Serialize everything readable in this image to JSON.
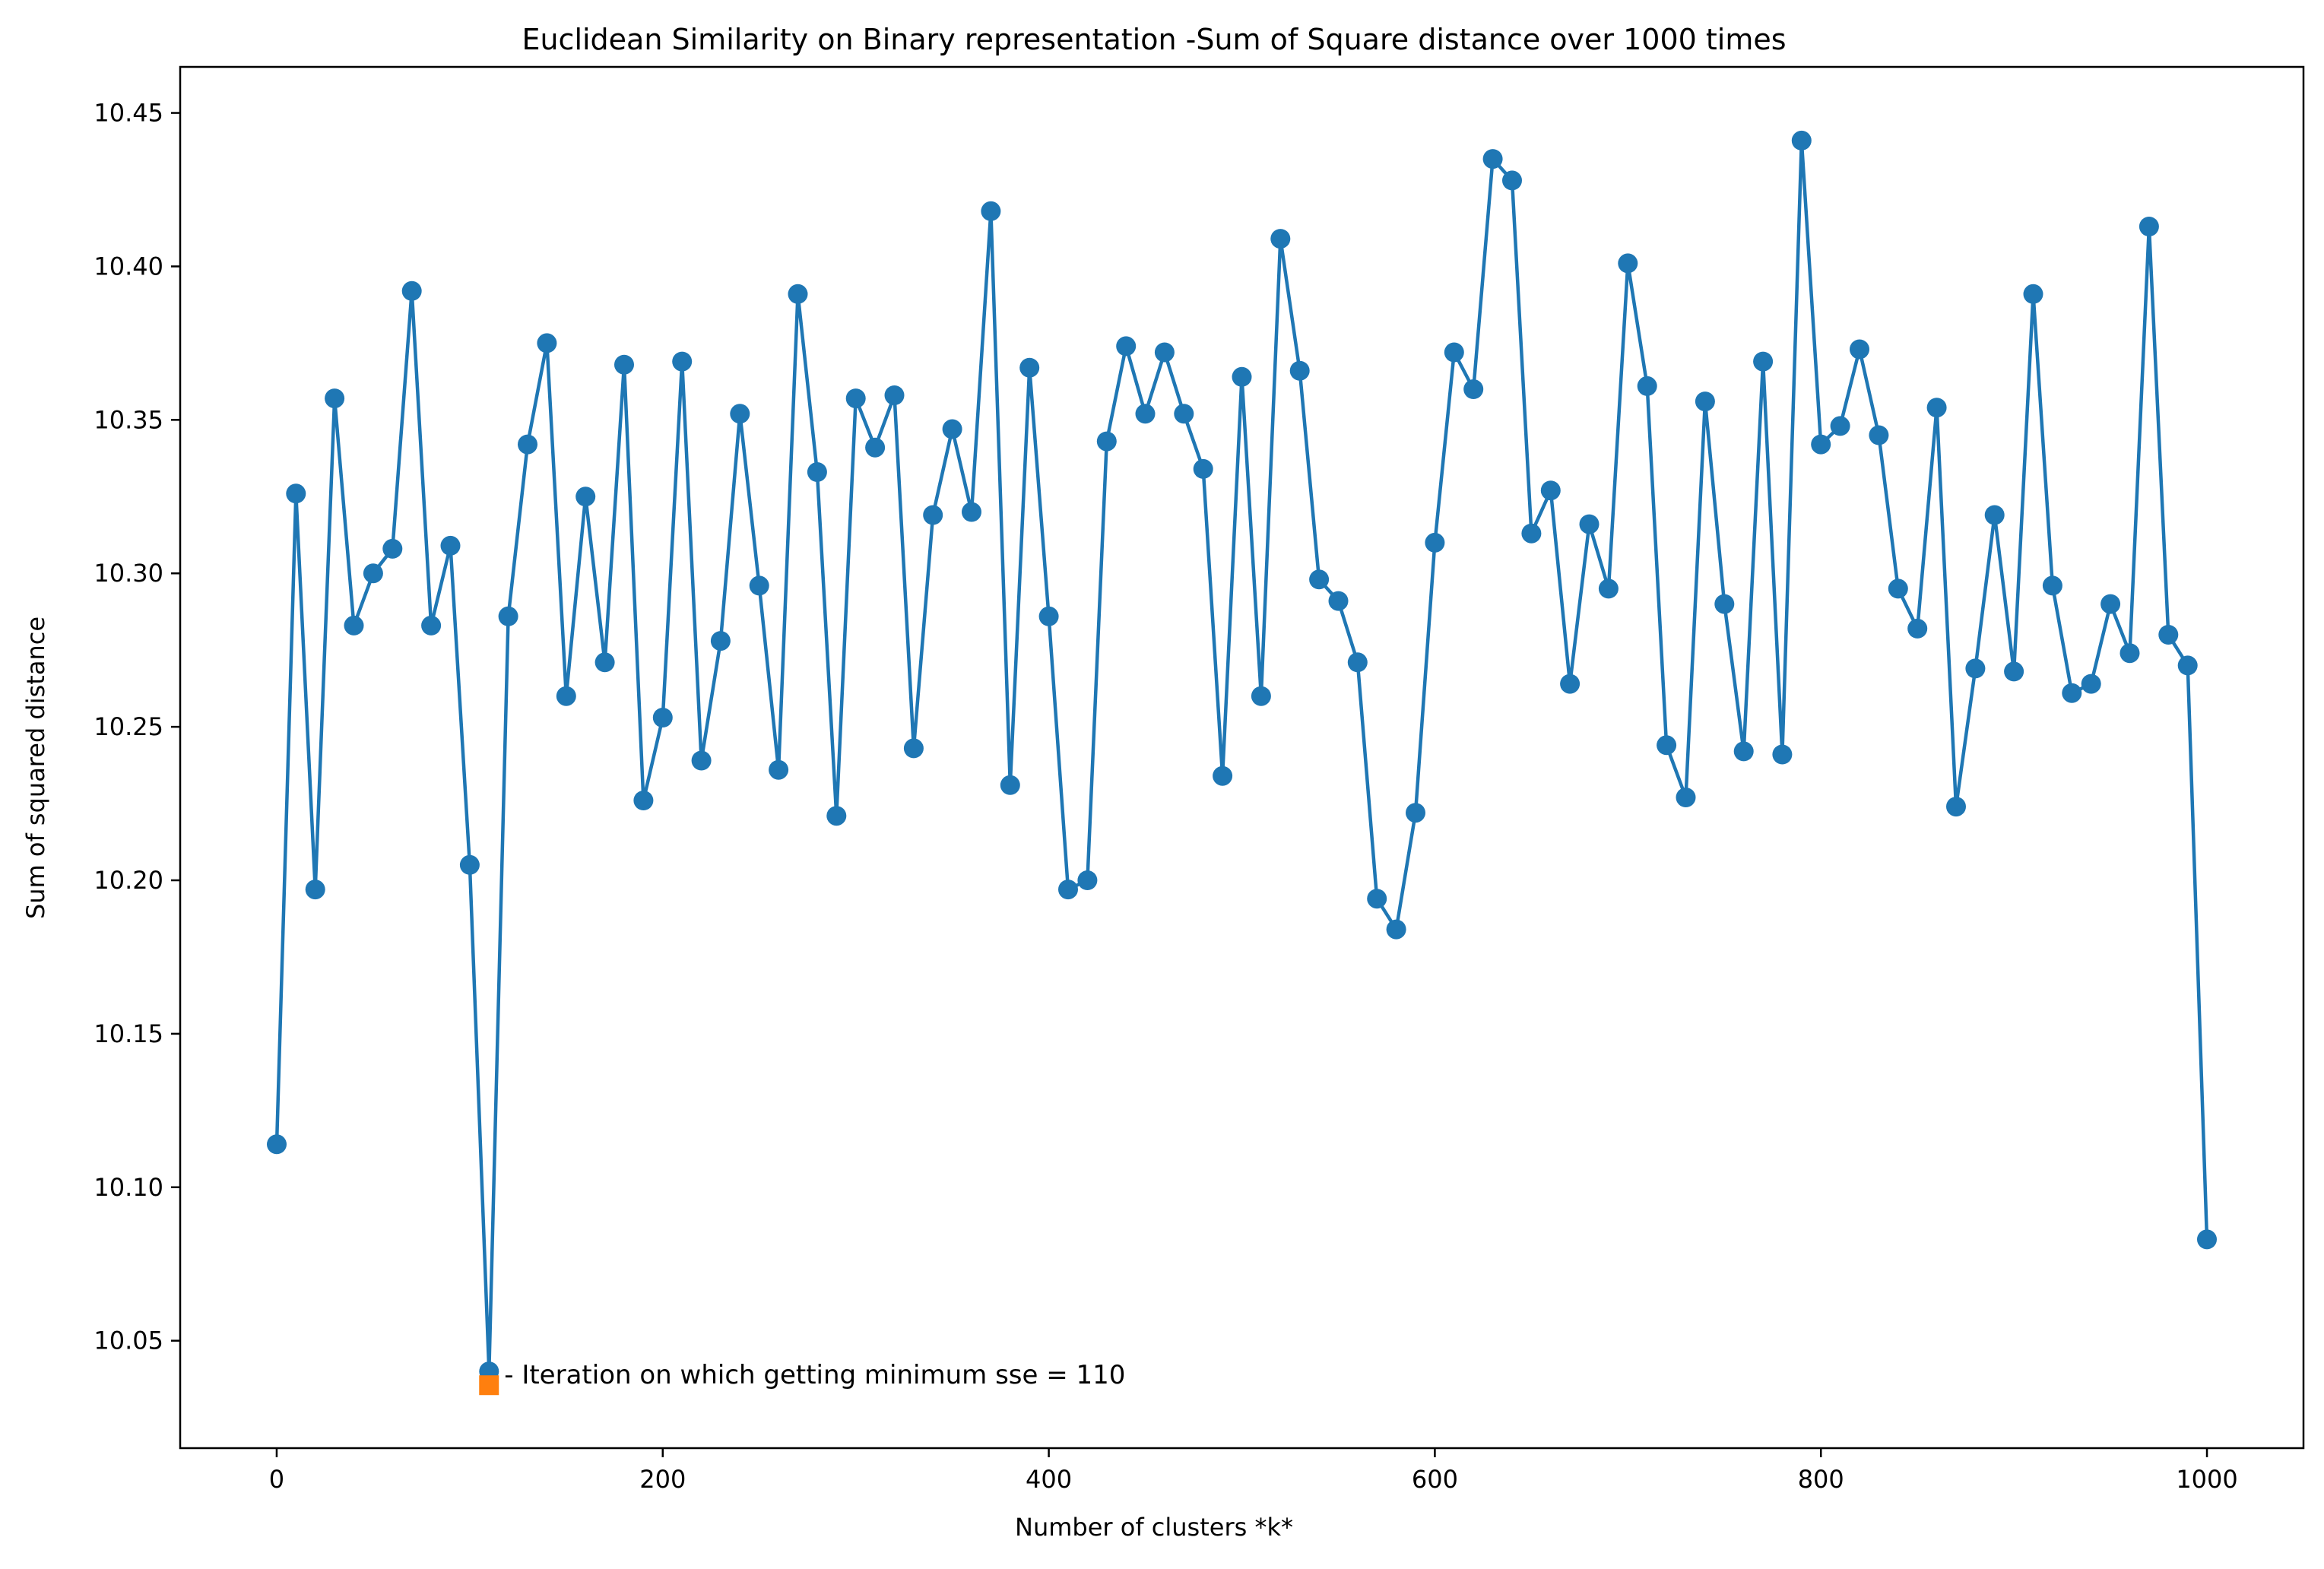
{
  "chart_data": {
    "type": "line",
    "title": "Euclidean Similarity on Binary representation -Sum of Square distance over 1000 times",
    "xlabel": "Number of clusters *k*",
    "ylabel": "Sum of squared distance",
    "xlim": [
      -50,
      1050
    ],
    "ylim": [
      10.015,
      10.465
    ],
    "xticks": [
      0,
      200,
      400,
      600,
      800,
      1000
    ],
    "yticks": [
      10.05,
      10.1,
      10.15,
      10.2,
      10.25,
      10.3,
      10.35,
      10.4,
      10.45
    ],
    "grid": false,
    "marker": "circle",
    "colors": {
      "series": "#1f77b4",
      "highlight": "#ff7f0e"
    },
    "series": [
      {
        "x": [
          0,
          10,
          20,
          30,
          40,
          50,
          60,
          70,
          80,
          90,
          100,
          110,
          120,
          130,
          140,
          150,
          160,
          170,
          180,
          190,
          200,
          210,
          220,
          230,
          240,
          250,
          260,
          270,
          280,
          290,
          300,
          310,
          320,
          330,
          340,
          350,
          360,
          370,
          380,
          390,
          400,
          410,
          420,
          430,
          440,
          450,
          460,
          470,
          480,
          490,
          500,
          510,
          520,
          530,
          540,
          550,
          560,
          570,
          580,
          590,
          600,
          610,
          620,
          630,
          640,
          650,
          660,
          670,
          680,
          690,
          700,
          710,
          720,
          730,
          740,
          750,
          760,
          770,
          780,
          790,
          800,
          810,
          820,
          830,
          840,
          850,
          860,
          870,
          880,
          890,
          900,
          910,
          920,
          930,
          940,
          950,
          960,
          970,
          980,
          990,
          1000
        ],
        "values": [
          10.114,
          10.326,
          10.197,
          10.357,
          10.283,
          10.3,
          10.308,
          10.392,
          10.283,
          10.309,
          10.205,
          10.04,
          10.286,
          10.342,
          10.375,
          10.26,
          10.325,
          10.271,
          10.368,
          10.226,
          10.253,
          10.369,
          10.239,
          10.278,
          10.352,
          10.296,
          10.236,
          10.391,
          10.333,
          10.221,
          10.357,
          10.341,
          10.358,
          10.243,
          10.319,
          10.347,
          10.32,
          10.418,
          10.231,
          10.367,
          10.286,
          10.197,
          10.2,
          10.343,
          10.374,
          10.352,
          10.372,
          10.352,
          10.334,
          10.234,
          10.364,
          10.26,
          10.409,
          10.366,
          10.298,
          10.291,
          10.271,
          10.194,
          10.184,
          10.222,
          10.31,
          10.372,
          10.36,
          10.435,
          10.428,
          10.313,
          10.327,
          10.264,
          10.316,
          10.295,
          10.401,
          10.361,
          10.244,
          10.227,
          10.356,
          10.29,
          10.242,
          10.369,
          10.241,
          10.441,
          10.342,
          10.348,
          10.373,
          10.345,
          10.295,
          10.282,
          10.354,
          10.224,
          10.269,
          10.319,
          10.268,
          10.391,
          10.296,
          10.261,
          10.264,
          10.29,
          10.274,
          10.413,
          10.28,
          10.27,
          10.083
        ]
      }
    ],
    "annotation": {
      "x": 110,
      "y": 10.0355,
      "text": "- Iteration on which getting minimum sse = 110"
    }
  }
}
